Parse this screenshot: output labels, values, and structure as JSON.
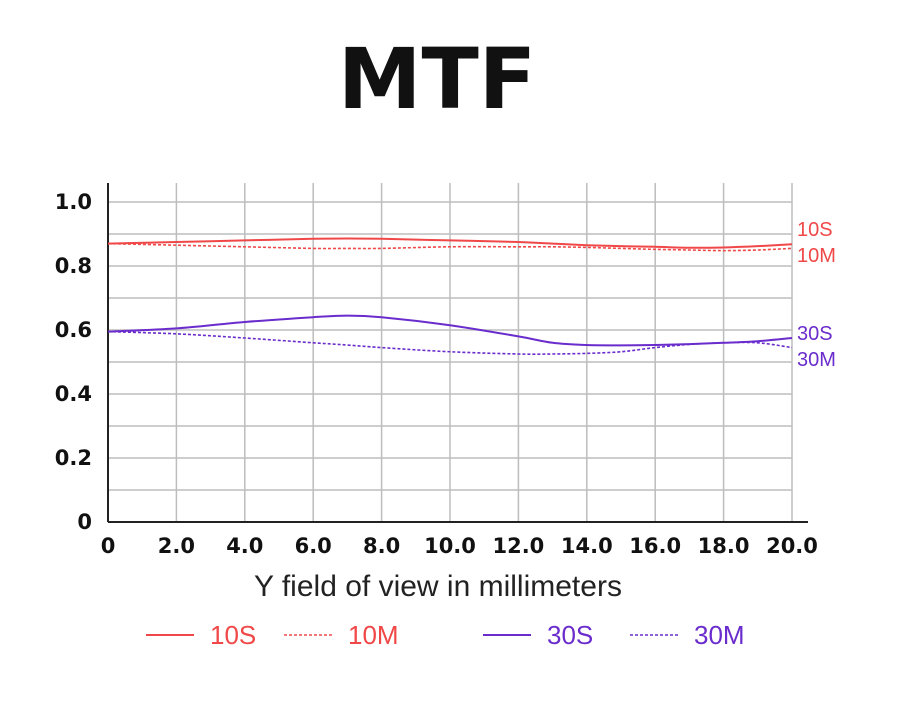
{
  "chart_data": {
    "type": "line",
    "title": "MTF",
    "xlabel": "Y field of view in millimeters",
    "ylabel": "",
    "xlim": [
      0,
      20
    ],
    "ylim": [
      0,
      1.0
    ],
    "x_ticks": [
      "0",
      "2.0",
      "4.0",
      "6.0",
      "8.0",
      "10.0",
      "12.0",
      "14.0",
      "16.0",
      "18.0",
      "20.0"
    ],
    "y_ticks": [
      "0",
      "0.2",
      "0.4",
      "0.6",
      "0.8",
      "1.0"
    ],
    "grid": true,
    "legend_position": "bottom",
    "x": [
      0,
      2,
      4,
      6,
      7,
      8,
      10,
      12,
      13,
      14,
      15,
      16,
      17,
      18,
      19,
      20
    ],
    "series": [
      {
        "name": "10S",
        "color": "#f04848",
        "style": "solid",
        "values": [
          0.87,
          0.875,
          0.88,
          0.885,
          0.886,
          0.885,
          0.88,
          0.875,
          0.87,
          0.865,
          0.862,
          0.86,
          0.857,
          0.858,
          0.862,
          0.868
        ]
      },
      {
        "name": "10M",
        "color": "#f04848",
        "style": "dashed",
        "values": [
          0.87,
          0.865,
          0.86,
          0.855,
          0.855,
          0.855,
          0.86,
          0.86,
          0.86,
          0.858,
          0.855,
          0.852,
          0.85,
          0.848,
          0.85,
          0.855
        ]
      },
      {
        "name": "30S",
        "color": "#6a2ccc",
        "style": "solid",
        "values": [
          0.595,
          0.605,
          0.625,
          0.64,
          0.645,
          0.64,
          0.615,
          0.58,
          0.56,
          0.553,
          0.552,
          0.553,
          0.556,
          0.56,
          0.565,
          0.575
        ]
      },
      {
        "name": "30M",
        "color": "#6a2ccc",
        "style": "dashed",
        "values": [
          0.595,
          0.588,
          0.575,
          0.56,
          0.553,
          0.545,
          0.532,
          0.525,
          0.525,
          0.527,
          0.532,
          0.545,
          0.555,
          0.56,
          0.56,
          0.545
        ]
      }
    ],
    "end_labels": [
      "10S",
      "10M",
      "30S",
      "30M"
    ]
  }
}
